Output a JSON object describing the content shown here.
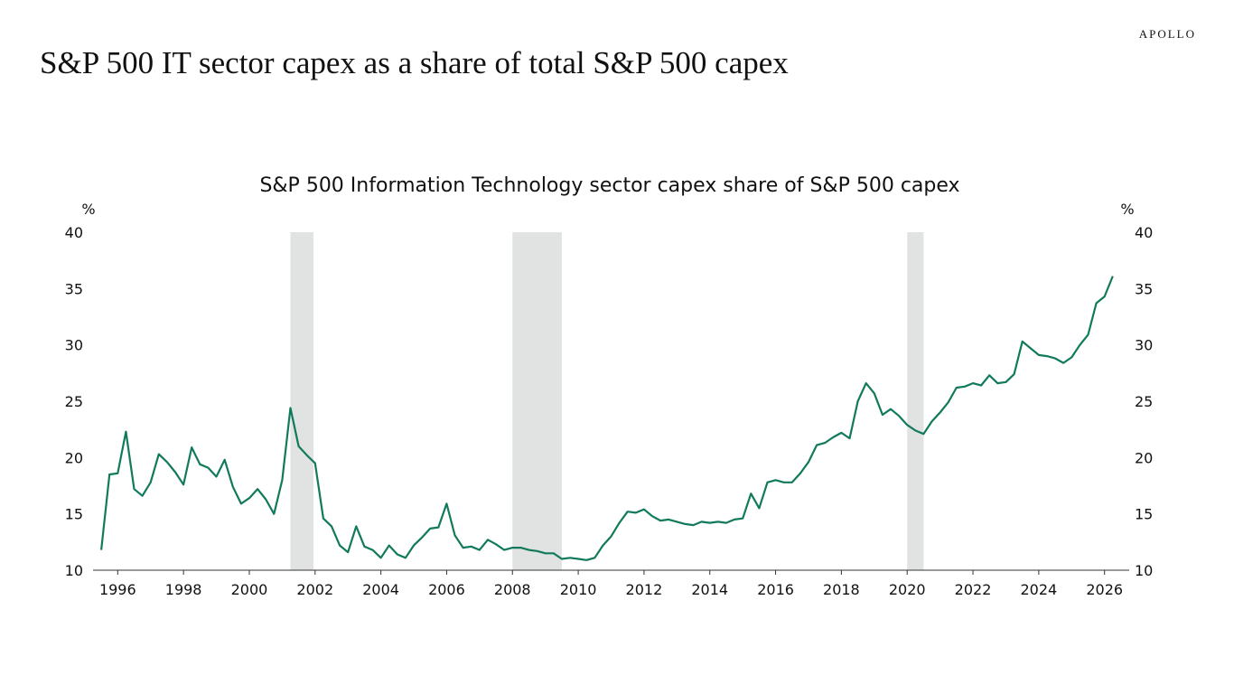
{
  "brand": "APOLLO",
  "headline": "S&P 500 IT sector capex as a share of total S&P 500 capex",
  "colors": {
    "line": "#127a5c",
    "recession": "#e1e3e2",
    "axis": "#333333"
  },
  "chart_data": {
    "type": "line",
    "title": "S&P 500 Information Technology sector capex share of S&P 500 capex",
    "ylabel_left": "%",
    "ylabel_right": "%",
    "xlim": [
      1995.25,
      2026.75
    ],
    "ylim": [
      10,
      40
    ],
    "yticks": [
      "10",
      "15",
      "20",
      "25",
      "30",
      "35",
      "40"
    ],
    "xticks": [
      "1996",
      "1998",
      "2000",
      "2002",
      "2004",
      "2006",
      "2008",
      "2010",
      "2012",
      "2014",
      "2016",
      "2018",
      "2020",
      "2022",
      "2024",
      "2026"
    ],
    "grid": false,
    "recession_shading": [
      [
        2001.25,
        2001.95
      ],
      [
        2008.0,
        2009.5
      ],
      [
        2020.0,
        2020.5
      ]
    ],
    "series": [
      {
        "x": [
          1995.5,
          1995.75,
          1996.0,
          1996.25,
          1996.5,
          1996.75,
          1997.0,
          1997.25,
          1997.5,
          1997.75,
          1998.0,
          1998.25,
          1998.5,
          1998.75,
          1999.0,
          1999.25,
          1999.5,
          1999.75,
          2000.0,
          2000.25,
          2000.5,
          2000.75,
          2001.0,
          2001.25,
          2001.5,
          2001.75,
          2002.0,
          2002.25,
          2002.5,
          2002.75,
          2003.0,
          2003.25,
          2003.5,
          2003.75,
          2004.0,
          2004.25,
          2004.5,
          2004.75,
          2005.0,
          2005.25,
          2005.5,
          2005.75,
          2006.0,
          2006.25,
          2006.5,
          2006.75,
          2007.0,
          2007.25,
          2007.5,
          2007.75,
          2008.0,
          2008.25,
          2008.5,
          2008.75,
          2009.0,
          2009.25,
          2009.5,
          2009.75,
          2010.0,
          2010.25,
          2010.5,
          2010.75,
          2011.0,
          2011.25,
          2011.5,
          2011.75,
          2012.0,
          2012.25,
          2012.5,
          2012.75,
          2013.0,
          2013.25,
          2013.5,
          2013.75,
          2014.0,
          2014.25,
          2014.5,
          2014.75,
          2015.0,
          2015.25,
          2015.5,
          2015.75,
          2016.0,
          2016.25,
          2016.5,
          2016.75,
          2017.0,
          2017.25,
          2017.5,
          2017.75,
          2018.0,
          2018.25,
          2018.5,
          2018.75,
          2019.0,
          2019.25,
          2019.5,
          2019.75,
          2020.0,
          2020.25,
          2020.5,
          2020.75,
          2021.0,
          2021.25,
          2021.5,
          2021.75,
          2022.0,
          2022.25,
          2022.5,
          2022.75,
          2023.0,
          2023.25,
          2023.5,
          2023.75,
          2024.0,
          2024.25,
          2024.5,
          2024.75,
          2025.0,
          2025.25,
          2025.5,
          2025.75,
          2026.0,
          2026.25
        ],
        "values": [
          11.8,
          18.5,
          18.6,
          22.3,
          17.2,
          16.6,
          17.8,
          20.3,
          19.6,
          18.7,
          17.6,
          20.9,
          19.4,
          19.1,
          18.3,
          19.8,
          17.4,
          15.9,
          16.4,
          17.2,
          16.3,
          15.0,
          18.0,
          24.4,
          21.0,
          20.2,
          19.5,
          14.6,
          13.9,
          12.2,
          11.6,
          13.9,
          12.1,
          11.8,
          11.1,
          12.2,
          11.4,
          11.1,
          12.2,
          12.9,
          13.7,
          13.8,
          15.9,
          13.1,
          12.0,
          12.1,
          11.8,
          12.7,
          12.3,
          11.8,
          12.0,
          12.0,
          11.8,
          11.7,
          11.5,
          11.5,
          11.0,
          11.1,
          11.0,
          10.9,
          11.1,
          12.2,
          13.0,
          14.2,
          15.2,
          15.1,
          15.4,
          14.8,
          14.4,
          14.5,
          14.3,
          14.1,
          14.0,
          14.3,
          14.2,
          14.3,
          14.2,
          14.5,
          14.6,
          16.8,
          15.5,
          17.8,
          18.0,
          17.8,
          17.8,
          18.6,
          19.6,
          21.1,
          21.3,
          21.8,
          22.2,
          21.7,
          25.0,
          26.6,
          25.7,
          23.8,
          24.3,
          23.7,
          22.9,
          22.4,
          22.1,
          23.2,
          24.0,
          24.9,
          26.2,
          26.3,
          26.6,
          26.4,
          27.3,
          26.6,
          26.7,
          27.4,
          30.3,
          29.7,
          29.1,
          29.0,
          28.8,
          28.4,
          28.9,
          30.0,
          30.9,
          33.7,
          34.3,
          36.1
        ]
      }
    ]
  }
}
